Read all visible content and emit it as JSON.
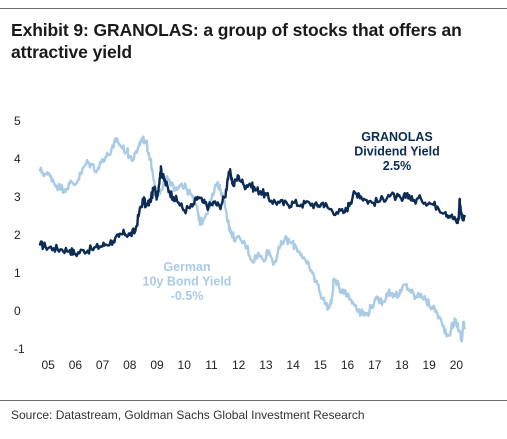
{
  "title": "Exhibit 9: GRANOLAS: a group of stocks that offers an attractive yield",
  "source": "Source: Datastream, Goldman Sachs Global Investment Research",
  "chart_data": {
    "type": "line",
    "ylim": [
      -1,
      5
    ],
    "yticks": [
      5,
      4,
      3,
      2,
      1,
      0,
      -1
    ],
    "xlim": [
      2004.7,
      2020.5
    ],
    "xticks": [
      {
        "x": 2005,
        "label": "05"
      },
      {
        "x": 2006,
        "label": "06"
      },
      {
        "x": 2007,
        "label": "07"
      },
      {
        "x": 2008,
        "label": "08"
      },
      {
        "x": 2009,
        "label": "09"
      },
      {
        "x": 2010,
        "label": "10"
      },
      {
        "x": 2011,
        "label": "11"
      },
      {
        "x": 2012,
        "label": "12"
      },
      {
        "x": 2013,
        "label": "13"
      },
      {
        "x": 2014,
        "label": "14"
      },
      {
        "x": 2015,
        "label": "15"
      },
      {
        "x": 2016,
        "label": "16"
      },
      {
        "x": 2017,
        "label": "17"
      },
      {
        "x": 2018,
        "label": "18"
      },
      {
        "x": 2019,
        "label": "19"
      },
      {
        "x": 2020,
        "label": "20"
      }
    ],
    "grid": false,
    "series": [
      {
        "name": "GRANOLAS Dividend Yield",
        "color": "#0c2c55",
        "points": [
          [
            2004.7,
            1.75
          ],
          [
            2004.9,
            1.7
          ],
          [
            2005.2,
            1.65
          ],
          [
            2005.5,
            1.62
          ],
          [
            2005.8,
            1.6
          ],
          [
            2006.0,
            1.5
          ],
          [
            2006.3,
            1.6
          ],
          [
            2006.6,
            1.62
          ],
          [
            2006.9,
            1.7
          ],
          [
            2007.1,
            1.75
          ],
          [
            2007.4,
            1.85
          ],
          [
            2007.6,
            1.95
          ],
          [
            2007.8,
            2.05
          ],
          [
            2008.0,
            2.0
          ],
          [
            2008.2,
            2.1
          ],
          [
            2008.35,
            2.6
          ],
          [
            2008.5,
            2.95
          ],
          [
            2008.6,
            2.75
          ],
          [
            2008.75,
            2.9
          ],
          [
            2008.9,
            3.25
          ],
          [
            2009.0,
            3.0
          ],
          [
            2009.1,
            3.5
          ],
          [
            2009.15,
            3.75
          ],
          [
            2009.2,
            3.55
          ],
          [
            2009.3,
            3.4
          ],
          [
            2009.45,
            3.15
          ],
          [
            2009.6,
            3.0
          ],
          [
            2009.8,
            2.85
          ],
          [
            2010.0,
            2.65
          ],
          [
            2010.3,
            2.75
          ],
          [
            2010.5,
            3.0
          ],
          [
            2010.7,
            2.85
          ],
          [
            2010.9,
            2.75
          ],
          [
            2011.1,
            2.85
          ],
          [
            2011.3,
            2.75
          ],
          [
            2011.5,
            3.0
          ],
          [
            2011.6,
            3.5
          ],
          [
            2011.7,
            3.65
          ],
          [
            2011.8,
            3.3
          ],
          [
            2012.0,
            3.55
          ],
          [
            2012.2,
            3.3
          ],
          [
            2012.4,
            3.35
          ],
          [
            2012.6,
            3.2
          ],
          [
            2012.8,
            3.15
          ],
          [
            2013.0,
            3.05
          ],
          [
            2013.2,
            2.9
          ],
          [
            2013.5,
            2.85
          ],
          [
            2013.8,
            2.8
          ],
          [
            2014.0,
            2.85
          ],
          [
            2014.3,
            2.8
          ],
          [
            2014.6,
            2.85
          ],
          [
            2014.9,
            2.75
          ],
          [
            2015.1,
            2.85
          ],
          [
            2015.3,
            2.7
          ],
          [
            2015.6,
            2.6
          ],
          [
            2015.9,
            2.6
          ],
          [
            2016.1,
            2.85
          ],
          [
            2016.2,
            3.05
          ],
          [
            2016.4,
            3.1
          ],
          [
            2016.6,
            2.95
          ],
          [
            2016.9,
            2.85
          ],
          [
            2017.2,
            2.9
          ],
          [
            2017.5,
            3.05
          ],
          [
            2017.8,
            3.0
          ],
          [
            2018.0,
            2.9
          ],
          [
            2018.2,
            3.1
          ],
          [
            2018.4,
            2.9
          ],
          [
            2018.7,
            2.95
          ],
          [
            2019.0,
            2.85
          ],
          [
            2019.3,
            2.75
          ],
          [
            2019.6,
            2.6
          ],
          [
            2019.8,
            2.5
          ],
          [
            2020.0,
            2.35
          ],
          [
            2020.08,
            2.4
          ],
          [
            2020.12,
            2.95
          ],
          [
            2020.2,
            2.45
          ],
          [
            2020.3,
            2.5
          ]
        ]
      },
      {
        "name": "German 10y Bond Yield",
        "color": "#a9cbe6",
        "points": [
          [
            2004.7,
            3.7
          ],
          [
            2004.9,
            3.6
          ],
          [
            2005.1,
            3.55
          ],
          [
            2005.3,
            3.3
          ],
          [
            2005.6,
            3.2
          ],
          [
            2005.8,
            3.35
          ],
          [
            2006.0,
            3.35
          ],
          [
            2006.2,
            3.6
          ],
          [
            2006.4,
            3.9
          ],
          [
            2006.6,
            3.85
          ],
          [
            2006.8,
            3.7
          ],
          [
            2007.0,
            4.0
          ],
          [
            2007.2,
            4.1
          ],
          [
            2007.4,
            4.3
          ],
          [
            2007.5,
            4.55
          ],
          [
            2007.7,
            4.3
          ],
          [
            2007.9,
            4.2
          ],
          [
            2008.0,
            4.05
          ],
          [
            2008.15,
            4.0
          ],
          [
            2008.3,
            4.3
          ],
          [
            2008.45,
            4.55
          ],
          [
            2008.6,
            4.45
          ],
          [
            2008.75,
            4.0
          ],
          [
            2008.9,
            3.4
          ],
          [
            2009.0,
            3.0
          ],
          [
            2009.2,
            3.2
          ],
          [
            2009.35,
            3.5
          ],
          [
            2009.5,
            3.3
          ],
          [
            2009.7,
            3.25
          ],
          [
            2009.9,
            3.35
          ],
          [
            2010.1,
            3.2
          ],
          [
            2010.3,
            3.0
          ],
          [
            2010.5,
            2.6
          ],
          [
            2010.6,
            2.3
          ],
          [
            2010.8,
            2.55
          ],
          [
            2011.0,
            2.95
          ],
          [
            2011.2,
            3.35
          ],
          [
            2011.4,
            3.1
          ],
          [
            2011.55,
            2.6
          ],
          [
            2011.7,
            2.05
          ],
          [
            2011.9,
            1.9
          ],
          [
            2012.1,
            1.85
          ],
          [
            2012.3,
            1.7
          ],
          [
            2012.5,
            1.3
          ],
          [
            2012.7,
            1.5
          ],
          [
            2012.9,
            1.35
          ],
          [
            2013.1,
            1.6
          ],
          [
            2013.3,
            1.25
          ],
          [
            2013.5,
            1.65
          ],
          [
            2013.7,
            1.9
          ],
          [
            2013.9,
            1.8
          ],
          [
            2014.1,
            1.7
          ],
          [
            2014.3,
            1.5
          ],
          [
            2014.5,
            1.25
          ],
          [
            2014.7,
            1.0
          ],
          [
            2014.9,
            0.7
          ],
          [
            2015.1,
            0.3
          ],
          [
            2015.3,
            0.1
          ],
          [
            2015.4,
            0.2
          ],
          [
            2015.5,
            0.85
          ],
          [
            2015.7,
            0.6
          ],
          [
            2015.9,
            0.55
          ],
          [
            2016.1,
            0.3
          ],
          [
            2016.3,
            0.15
          ],
          [
            2016.5,
            -0.05
          ],
          [
            2016.7,
            -0.1
          ],
          [
            2016.9,
            0.15
          ],
          [
            2017.1,
            0.3
          ],
          [
            2017.3,
            0.25
          ],
          [
            2017.5,
            0.5
          ],
          [
            2017.7,
            0.45
          ],
          [
            2017.9,
            0.4
          ],
          [
            2018.1,
            0.7
          ],
          [
            2018.3,
            0.55
          ],
          [
            2018.5,
            0.35
          ],
          [
            2018.7,
            0.45
          ],
          [
            2018.9,
            0.25
          ],
          [
            2019.1,
            0.1
          ],
          [
            2019.3,
            -0.05
          ],
          [
            2019.5,
            -0.4
          ],
          [
            2019.7,
            -0.65
          ],
          [
            2019.9,
            -0.3
          ],
          [
            2020.0,
            -0.3
          ],
          [
            2020.1,
            -0.5
          ],
          [
            2020.2,
            -0.8
          ],
          [
            2020.25,
            -0.3
          ],
          [
            2020.3,
            -0.45
          ]
        ]
      }
    ],
    "annotations": [
      {
        "series": "GRANOLAS Dividend Yield",
        "lines": [
          "GRANOLAS",
          "Dividend Yield",
          "2.5%"
        ],
        "color": "#0c2c55"
      },
      {
        "series": "German 10y Bond Yield",
        "lines": [
          "German",
          "10y Bond Yield",
          "-0.5%"
        ],
        "color": "#a9cbe6"
      }
    ]
  }
}
